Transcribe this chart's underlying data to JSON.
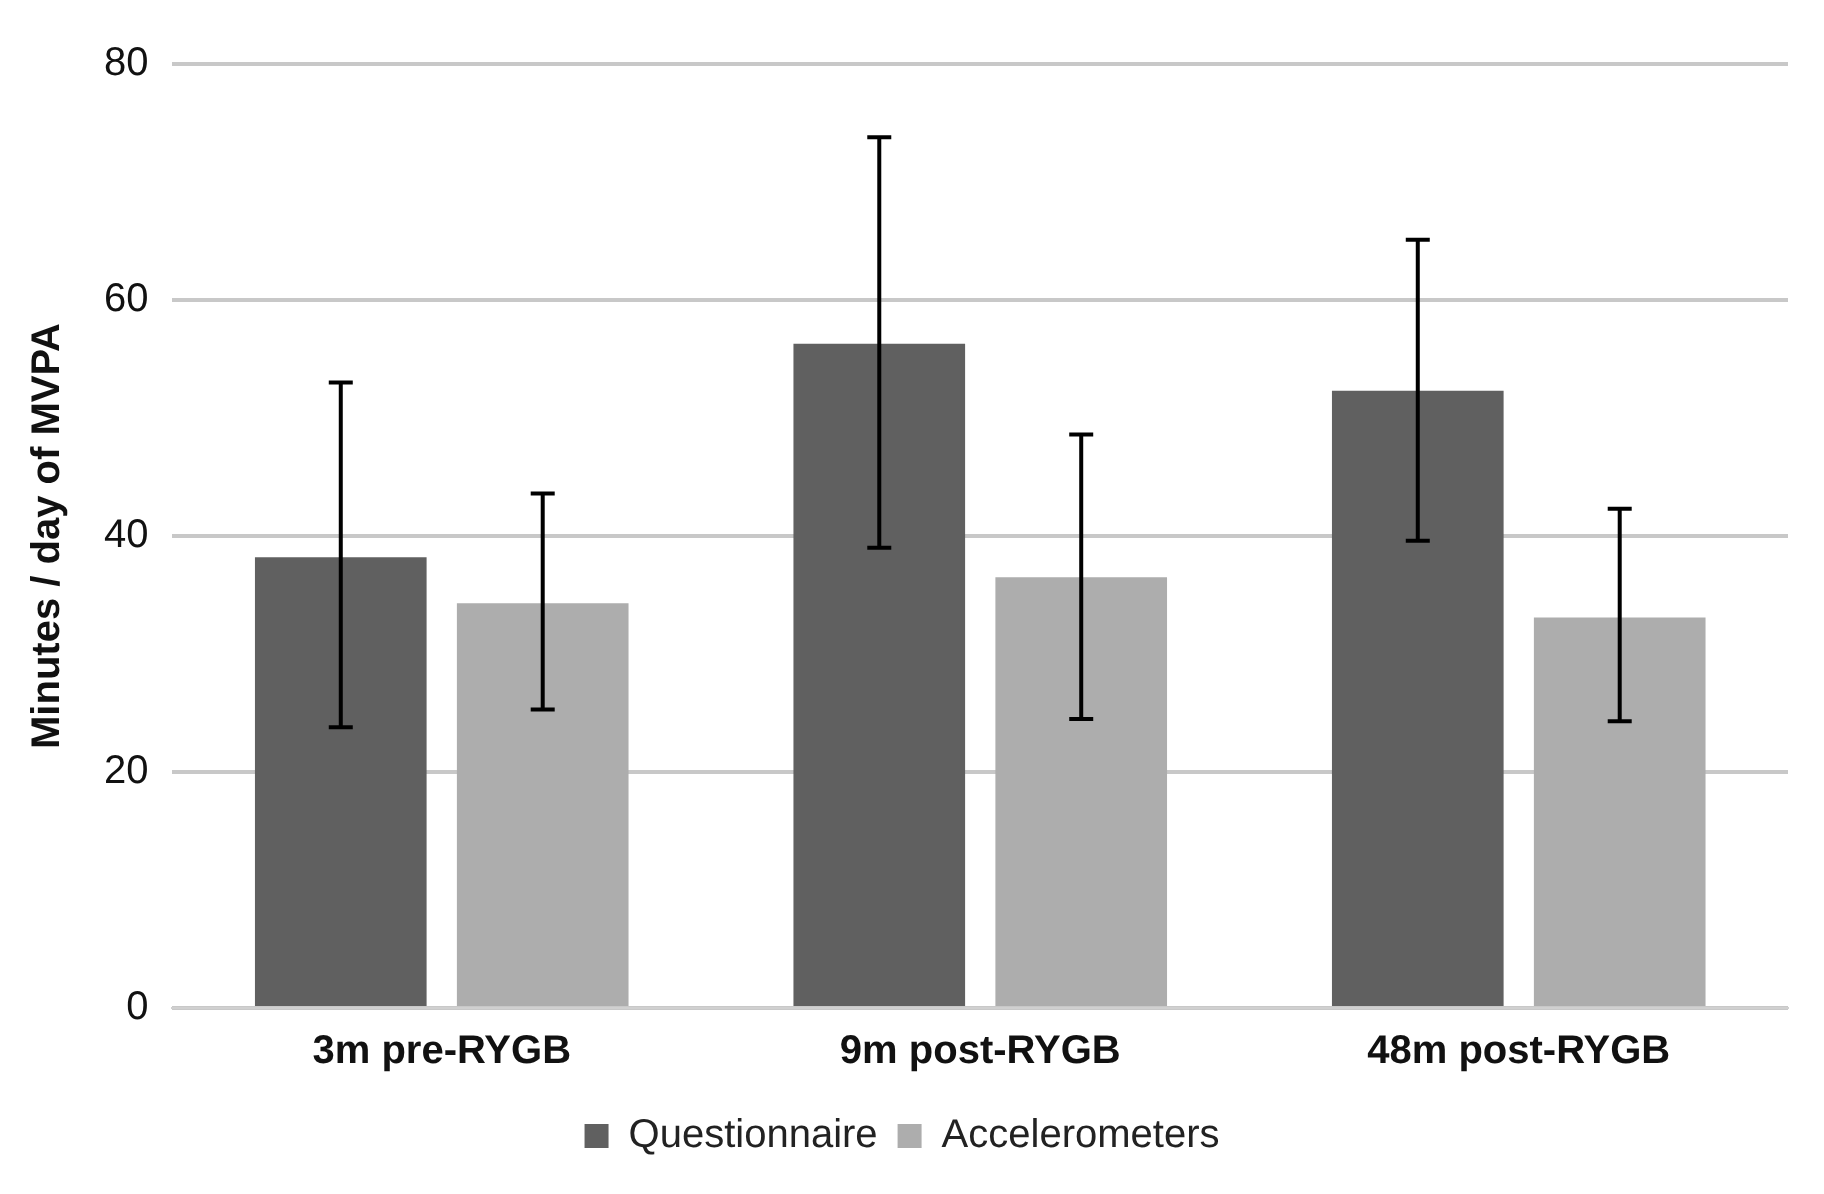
{
  "chart_data": {
    "type": "bar",
    "ylabel": "Minutes / day of MVPA",
    "categories": [
      "3m pre-RYGB",
      "9m post-RYGB",
      "48m post-RYGB"
    ],
    "series": [
      {
        "name": "Questionnaire",
        "color": "#606060",
        "values": [
          38.2,
          56.3,
          52.3
        ],
        "errors": [
          [
            23.8,
            53.0
          ],
          [
            39.0,
            73.8
          ],
          [
            39.6,
            65.1
          ]
        ]
      },
      {
        "name": "Accelerometers",
        "color": "#adadad",
        "values": [
          34.3,
          36.5,
          33.1
        ],
        "errors": [
          [
            25.3,
            43.6
          ],
          [
            24.5,
            48.6
          ],
          [
            24.3,
            42.3
          ]
        ]
      }
    ],
    "ylim": [
      0,
      80
    ],
    "yticks": [
      0,
      20,
      40,
      60,
      80
    ],
    "grid": "y",
    "legend": "bottom"
  }
}
